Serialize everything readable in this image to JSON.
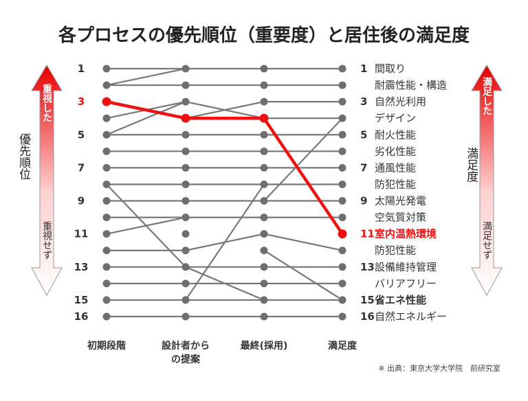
{
  "chart_data": {
    "type": "line",
    "title": "各プロセスの優先順位（重要度）と居住後の満足度",
    "categories": [
      "初期段階",
      "設計者から|の提案",
      "最終(採用)",
      "満足度"
    ],
    "rank_ticks": [
      1,
      3,
      5,
      7,
      9,
      11,
      13,
      15,
      16
    ],
    "ylim": [
      1,
      16
    ],
    "y_inverted": true,
    "series": [
      {
        "name": "間取り",
        "values": [
          1,
          1,
          1,
          1
        ]
      },
      {
        "name": "耐震性能・構造",
        "values": [
          2,
          2,
          2,
          2
        ]
      },
      {
        "name": "自然光利用",
        "values": [
          3,
          4,
          3,
          3
        ]
      },
      {
        "name": "デザイン",
        "values": [
          4,
          3,
          4,
          4
        ]
      },
      {
        "name": "耐火性能",
        "values": [
          5,
          5,
          5,
          5
        ]
      },
      {
        "name": "劣化性能",
        "values": [
          6,
          6,
          6,
          6
        ]
      },
      {
        "name": "通風性能",
        "values": [
          7,
          7,
          7,
          7
        ]
      },
      {
        "name": "防犯性能",
        "values": [
          8,
          8,
          8,
          8
        ]
      },
      {
        "name": "太陽光発電",
        "values": [
          9,
          9,
          9,
          9
        ]
      },
      {
        "name": "空気質対策",
        "values": [
          10,
          10,
          10,
          10
        ]
      },
      {
        "name": "室内温熱環境",
        "values": [
          3,
          4,
          4,
          11
        ],
        "highlight": true
      },
      {
        "name": "防犯性能",
        "values": [
          12,
          12,
          11,
          12
        ]
      },
      {
        "name": "設備維持管理",
        "values": [
          13,
          13,
          13,
          13
        ]
      },
      {
        "name": "バリアフリー",
        "values": [
          14,
          14,
          14,
          14
        ]
      },
      {
        "name": "省エネ性能",
        "values": [
          15,
          15,
          15,
          15
        ]
      },
      {
        "name": "自然エネルギー",
        "values": [
          16,
          16,
          16,
          16
        ]
      }
    ],
    "left_ranks": [
      1,
      2,
      3,
      4,
      5,
      6,
      7,
      8,
      9,
      10,
      11,
      12,
      13,
      14,
      15,
      16
    ],
    "extra_segments": [
      {
        "from": [
          1,
          5
        ],
        "to": [
          2,
          3
        ]
      },
      {
        "from": [
          1,
          8
        ],
        "to": [
          2,
          13
        ]
      },
      {
        "from": [
          1,
          11
        ],
        "to": [
          2,
          10
        ]
      },
      {
        "from": [
          2,
          13
        ],
        "to": [
          3,
          15
        ]
      },
      {
        "from": [
          3,
          12
        ],
        "to": [
          4,
          15
        ]
      },
      {
        "from": [
          2,
          15
        ],
        "to": [
          3,
          8
        ]
      },
      {
        "from": [
          3,
          9
        ],
        "to": [
          4,
          4
        ]
      },
      {
        "from": [
          1,
          2
        ],
        "to": [
          2,
          1
        ]
      }
    ],
    "right_labels": [
      {
        "rank": "1",
        "text": "間取り",
        "y": 1
      },
      {
        "rank": "",
        "text": "耐震性能・構造",
        "y": 2
      },
      {
        "rank": "3",
        "text": "自然光利用",
        "y": 3
      },
      {
        "rank": "",
        "text": "デザイン",
        "y": 4
      },
      {
        "rank": "5",
        "text": "耐火性能",
        "y": 5
      },
      {
        "rank": "",
        "text": "劣化性能",
        "y": 6
      },
      {
        "rank": "7",
        "text": "通風性能",
        "y": 7
      },
      {
        "rank": "",
        "text": "防犯性能",
        "y": 8
      },
      {
        "rank": "9",
        "text": "太陽光発電",
        "y": 9
      },
      {
        "rank": "",
        "text": "空気質対策",
        "y": 10
      },
      {
        "rank": "11",
        "text": "室内温熱環境",
        "y": 11,
        "highlight": true
      },
      {
        "rank": "",
        "text": "防犯性能",
        "y": 12
      },
      {
        "rank": "13",
        "text": "設備維持管理",
        "y": 13
      },
      {
        "rank": "",
        "text": "バリアフリー",
        "y": 14
      },
      {
        "rank": "15",
        "text": "省エネ性能",
        "y": 15,
        "bold": true
      },
      {
        "rank": "16",
        "text": "自然エネルギー",
        "y": 16
      }
    ],
    "left_axis": {
      "top_label": "重視した",
      "bottom_label": "重視せず",
      "side_label": "優先順位"
    },
    "right_axis": {
      "top_label": "満足した",
      "bottom_label": "満足せず",
      "side_label": "満足度"
    },
    "source": "※ 出典：東京大学大学院　前研究室",
    "colors": {
      "line": "#777777",
      "dot": "#6e6e6e",
      "highlight": "#ee1111",
      "text": "#333333"
    }
  }
}
